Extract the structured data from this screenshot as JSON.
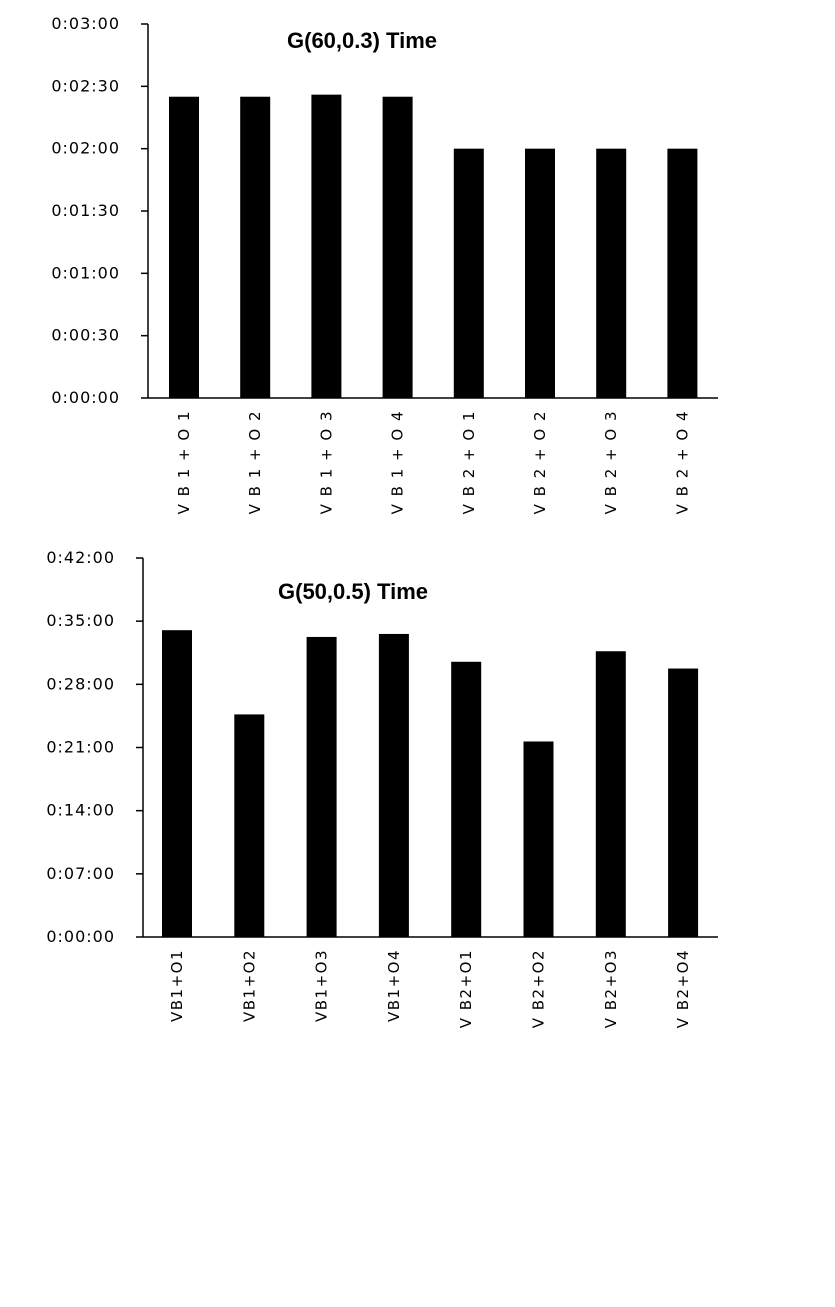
{
  "chart_data": [
    {
      "type": "bar",
      "title": "G(60,0.3) Time",
      "categories": [
        "V B 1 + O 1",
        "V B 1 + O 2",
        "V B 1 + O 3",
        "V B 1 + O 4",
        "V B 2 + O 1",
        "V B 2 + O 2",
        "V B 2 + O 3",
        "V B 2 + O 4"
      ],
      "values_seconds": [
        145,
        145,
        146,
        145,
        120,
        120,
        120,
        120
      ],
      "y_ticks": [
        "0:00:00",
        "0:00:30",
        "0:01:00",
        "0:01:30",
        "0:02:00",
        "0:02:30",
        "0:03:00"
      ],
      "ylim_seconds": [
        0,
        180
      ],
      "xlabel": "",
      "ylabel": "",
      "grid": false,
      "bar_color": "#000000"
    },
    {
      "type": "bar",
      "title": "G(50,0.5) Time",
      "categories": [
        "VB1+O1",
        "VB1+O2",
        "VB1+O3",
        "VB1+O4",
        "V B2+O1",
        "V B2+O2",
        "V B2+O3",
        "V B2+O4"
      ],
      "values_seconds": [
        2040,
        1480,
        1995,
        2015,
        1830,
        1300,
        1900,
        1785
      ],
      "y_ticks": [
        "0:00:00",
        "0:07:00",
        "0:14:00",
        "0:21:00",
        "0:28:00",
        "0:35:00",
        "0:42:00"
      ],
      "ylim_seconds": [
        0,
        2520
      ],
      "xlabel": "",
      "ylabel": "",
      "grid": false,
      "bar_color": "#000000"
    }
  ]
}
